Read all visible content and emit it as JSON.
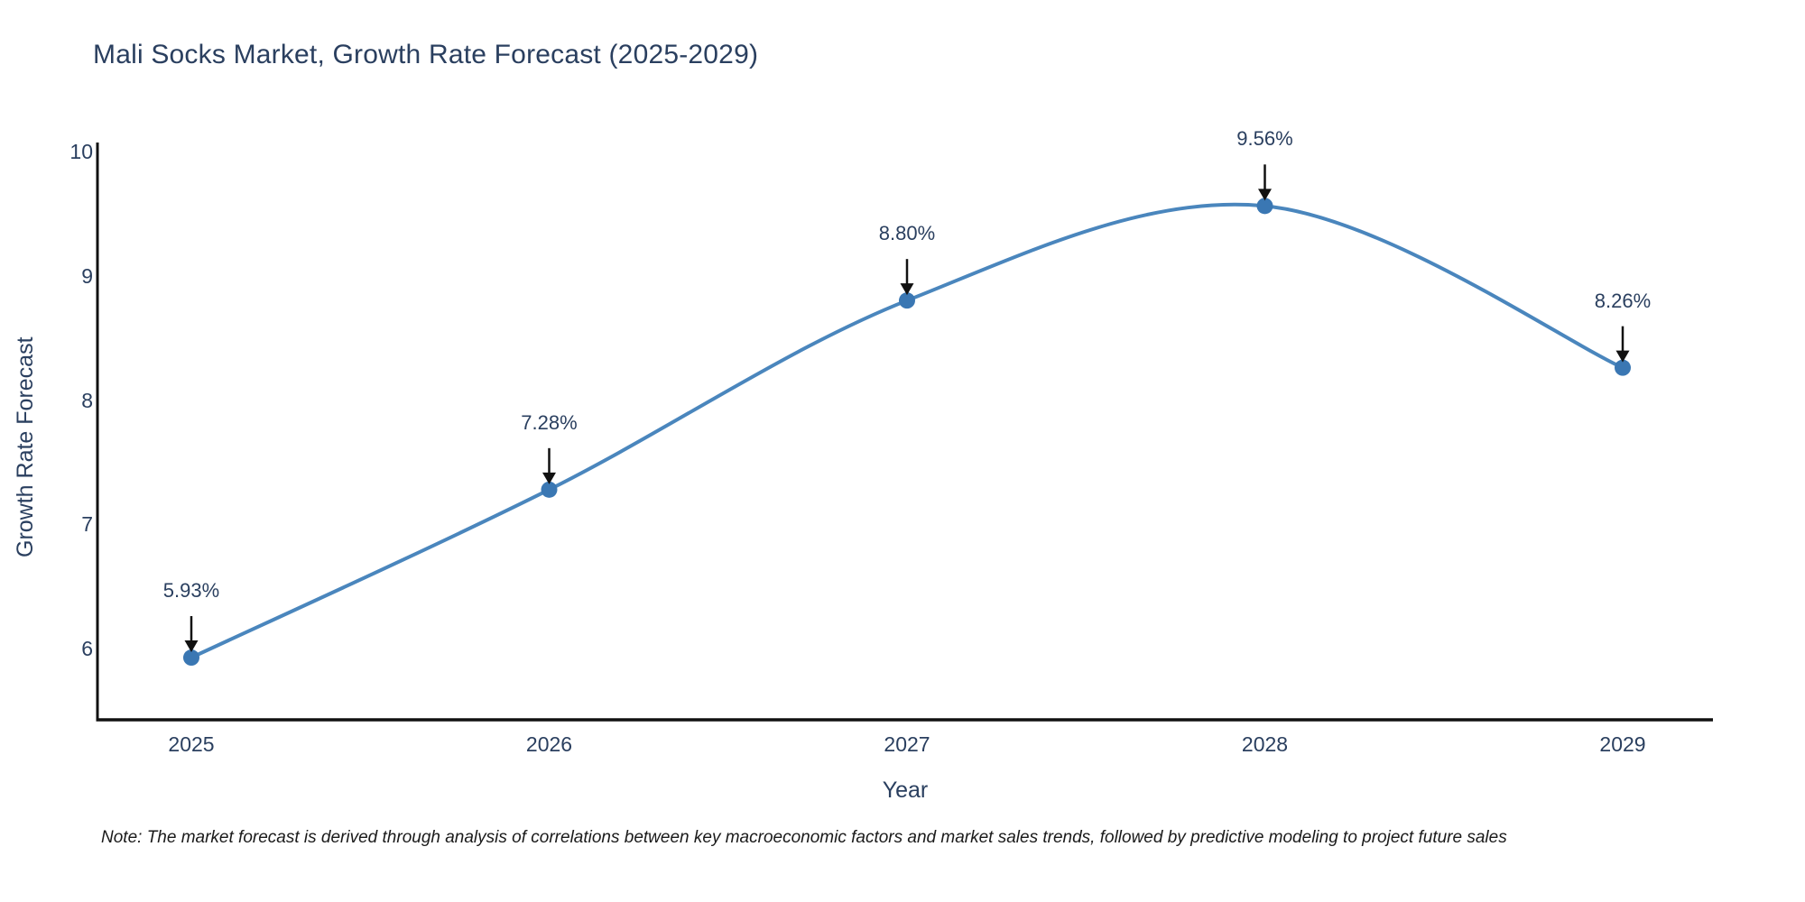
{
  "page": {
    "background": "#ffffff"
  },
  "chart_data": {
    "type": "line",
    "title": "Mali Socks Market, Growth Rate Forecast (2025-2029)",
    "categories": [
      "2025",
      "2026",
      "2027",
      "2028",
      "2029"
    ],
    "values": [
      5.93,
      7.28,
      8.8,
      9.56,
      8.26
    ],
    "point_labels": [
      "5.93%",
      "7.28%",
      "8.80%",
      "9.56%",
      "8.26%"
    ],
    "xlabel": "Year",
    "ylabel": "Growth Rate Forecast",
    "y_ticks": [
      6,
      7,
      8,
      9,
      10
    ],
    "ylim": [
      5.43,
      10.07
    ],
    "grid": false,
    "legend": "none",
    "line_shape": "spline",
    "annotation_style": "down-arrow",
    "colors": {
      "line": "#4a86bd",
      "marker": "#3a77b3",
      "arrow": "#111111",
      "axis": "#111111",
      "text": "#2a3f5f"
    }
  },
  "footnote": {
    "text": "Note: The market forecast is derived through analysis of correlations between key macroeconomic factors and market sales trends, followed by predictive modeling to project future sales"
  }
}
